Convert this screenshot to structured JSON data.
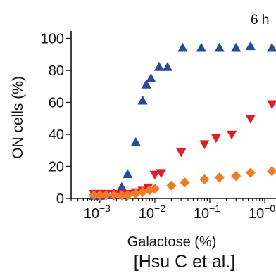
{
  "chart_data": {
    "type": "scatter",
    "panel_label": "6 h",
    "xlabel": "Galactose (%)",
    "ylabel": "ON cells (%)",
    "xscale": "log",
    "xlim": [
      0.0003,
      1.6
    ],
    "ylim": [
      0,
      102
    ],
    "xticks": [
      {
        "value": 0.001,
        "base": "10",
        "exp": "−3"
      },
      {
        "value": 0.01,
        "base": "10",
        "exp": "−2"
      },
      {
        "value": 0.1,
        "base": "10",
        "exp": "−1"
      },
      {
        "value": 1,
        "base": "10",
        "exp": "−0"
      }
    ],
    "yticks": [
      0,
      20,
      40,
      60,
      80,
      100
    ],
    "grid": false,
    "series": [
      {
        "marker": "triangle-up",
        "color": "#2a4a9e",
        "points": [
          [
            0.00078,
            1.5
          ],
          [
            0.001,
            1.5
          ],
          [
            0.0013,
            2
          ],
          [
            0.0018,
            3
          ],
          [
            0.0025,
            7
          ],
          [
            0.0032,
            15
          ],
          [
            0.0045,
            35
          ],
          [
            0.006,
            61
          ],
          [
            0.007,
            71
          ],
          [
            0.0085,
            75
          ],
          [
            0.012,
            82
          ],
          [
            0.017,
            82
          ],
          [
            0.032,
            94
          ],
          [
            0.07,
            94
          ],
          [
            0.15,
            94
          ],
          [
            0.3,
            94
          ],
          [
            0.55,
            95
          ],
          [
            1.35,
            94
          ]
        ]
      },
      {
        "marker": "triangle-down",
        "color": "#e11d2a",
        "points": [
          [
            0.00078,
            3
          ],
          [
            0.001,
            3
          ],
          [
            0.0013,
            3
          ],
          [
            0.0018,
            3
          ],
          [
            0.0025,
            3
          ],
          [
            0.0032,
            3
          ],
          [
            0.0045,
            4
          ],
          [
            0.006,
            5
          ],
          [
            0.0075,
            7
          ],
          [
            0.01,
            15
          ],
          [
            0.013,
            16
          ],
          [
            0.03,
            29
          ],
          [
            0.08,
            34
          ],
          [
            0.13,
            38
          ],
          [
            0.25,
            40
          ],
          [
            0.55,
            50
          ],
          [
            1.35,
            59
          ]
        ]
      },
      {
        "marker": "diamond",
        "color": "#f07d26",
        "points": [
          [
            0.00078,
            2
          ],
          [
            0.001,
            2
          ],
          [
            0.0013,
            2
          ],
          [
            0.0018,
            2
          ],
          [
            0.0025,
            2
          ],
          [
            0.0032,
            2
          ],
          [
            0.0045,
            3
          ],
          [
            0.006,
            4
          ],
          [
            0.008,
            5
          ],
          [
            0.01,
            6
          ],
          [
            0.02,
            8
          ],
          [
            0.035,
            10
          ],
          [
            0.08,
            12
          ],
          [
            0.15,
            13
          ],
          [
            0.3,
            14
          ],
          [
            0.55,
            16
          ],
          [
            1.35,
            17
          ]
        ]
      }
    ]
  },
  "credit": "[Hsu C et al.]"
}
